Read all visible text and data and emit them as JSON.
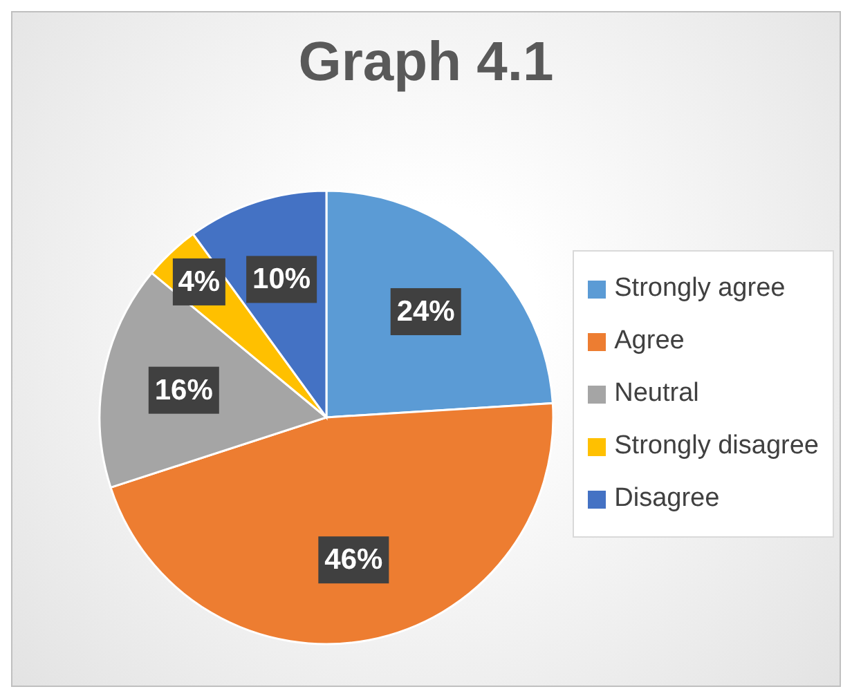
{
  "chart_data": {
    "type": "pie",
    "title": "Graph 4.1",
    "categories": [
      "Strongly agree",
      "Agree",
      "Neutral",
      "Strongly disagree",
      "Disagree"
    ],
    "values": [
      24,
      46,
      16,
      4,
      10
    ],
    "colors": [
      "#5b9bd5",
      "#ed7d31",
      "#a5a5a5",
      "#ffc000",
      "#4472c4"
    ],
    "value_labels": [
      "24%",
      "46%",
      "16%",
      "4%",
      "10%"
    ],
    "legend": "right"
  }
}
